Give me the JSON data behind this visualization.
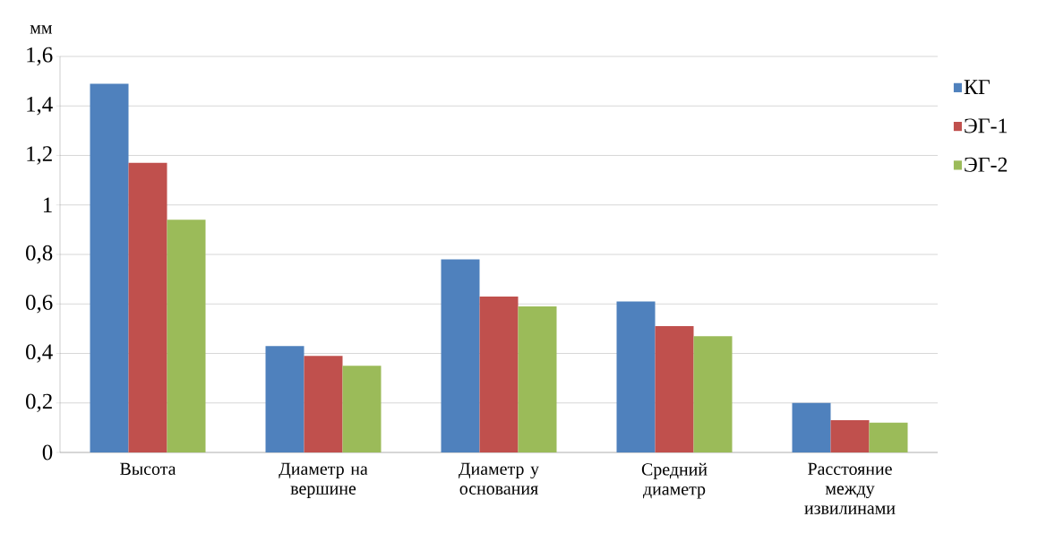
{
  "chart_data": {
    "type": "bar",
    "ylabel": "мм",
    "categories": [
      "Высота",
      "Диаметр на вершине",
      "Диаметр у основания",
      "Средний диаметр",
      "Расстояние между извилинами"
    ],
    "series": [
      {
        "name": "КГ",
        "color": "#4f81bd",
        "values": [
          1.49,
          0.43,
          0.78,
          0.61,
          0.2
        ]
      },
      {
        "name": "ЭГ-1",
        "color": "#c0504d",
        "values": [
          1.17,
          0.39,
          0.63,
          0.51,
          0.13
        ]
      },
      {
        "name": "ЭГ-2",
        "color": "#9bbb59",
        "values": [
          0.94,
          0.35,
          0.59,
          0.47,
          0.12
        ]
      }
    ],
    "ylim": [
      0,
      1.6
    ],
    "yticks": [
      0,
      {
        "value": 0.2,
        "label": "0,2"
      },
      {
        "value": 0.4,
        "label": "0,4"
      },
      {
        "value": 0.6,
        "label": "0,6"
      },
      {
        "value": 0.8,
        "label": "0,8"
      },
      1,
      {
        "value": 1.2,
        "label": "1,2"
      },
      {
        "value": 1.4,
        "label": "1,4"
      },
      {
        "value": 1.6,
        "label": "1,6"
      }
    ],
    "grid": "y",
    "legend": "right"
  }
}
